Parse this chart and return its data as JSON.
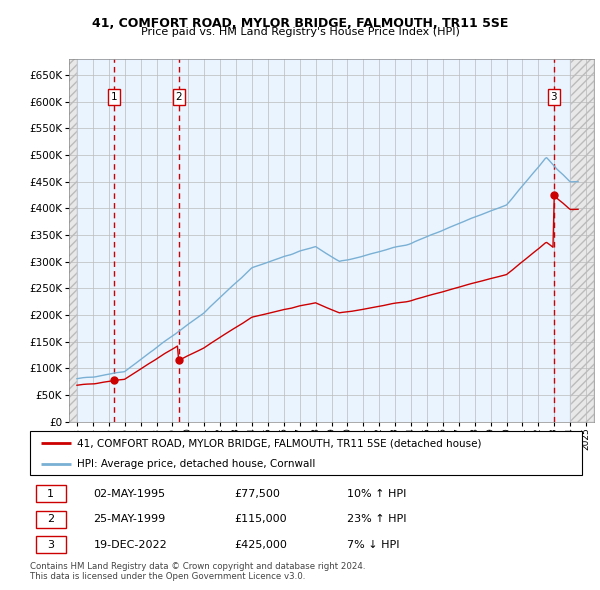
{
  "title_line1": "41, COMFORT ROAD, MYLOR BRIDGE, FALMOUTH, TR11 5SE",
  "title_line2": "Price paid vs. HM Land Registry's House Price Index (HPI)",
  "ylim": [
    0,
    680000
  ],
  "ytick_values": [
    0,
    50000,
    100000,
    150000,
    200000,
    250000,
    300000,
    350000,
    400000,
    450000,
    500000,
    550000,
    600000,
    650000
  ],
  "ytick_labels": [
    "£0",
    "£50K",
    "£100K",
    "£150K",
    "£200K",
    "£250K",
    "£300K",
    "£350K",
    "£400K",
    "£450K",
    "£500K",
    "£550K",
    "£600K",
    "£650K"
  ],
  "sale_dates_num": [
    1995.33,
    1999.39,
    2022.96
  ],
  "sale_prices": [
    77500,
    115000,
    425000
  ],
  "sale_labels": [
    "1",
    "2",
    "3"
  ],
  "hpi_line_color": "#7ab0d4",
  "price_line_color": "#cc0000",
  "sale_marker_color": "#cc0000",
  "vline_color": "#cc0000",
  "background_fill_color": "#ddeeff",
  "grid_color": "#bbbbbb",
  "legend_label_price": "41, COMFORT ROAD, MYLOR BRIDGE, FALMOUTH, TR11 5SE (detached house)",
  "legend_label_hpi": "HPI: Average price, detached house, Cornwall",
  "table_data": [
    [
      "1",
      "02-MAY-1995",
      "£77,500",
      "10% ↑ HPI"
    ],
    [
      "2",
      "25-MAY-1999",
      "£115,000",
      "23% ↑ HPI"
    ],
    [
      "3",
      "19-DEC-2022",
      "£425,000",
      "7% ↓ HPI"
    ]
  ],
  "footnote": "Contains HM Land Registry data © Crown copyright and database right 2024.\nThis data is licensed under the Open Government Licence v3.0.",
  "xmin": 1992.5,
  "xmax": 2025.5,
  "data_xstart": 1993.0,
  "data_xend": 2024.0
}
